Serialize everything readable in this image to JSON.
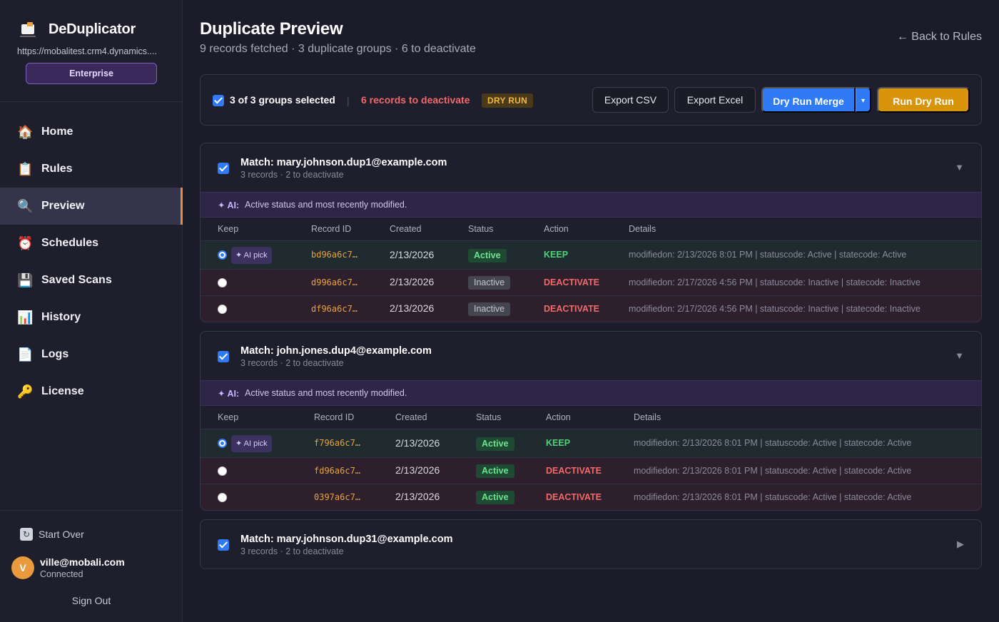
{
  "sidebar": {
    "brand": "DeDuplicator",
    "org_url": "https://mobalitest.crm4.dynamics....",
    "plan": "Enterprise",
    "nav": [
      {
        "label": "Home",
        "icon": "house-icon",
        "glyph": "🏠"
      },
      {
        "label": "Rules",
        "icon": "clipboard-icon",
        "glyph": "📋"
      },
      {
        "label": "Preview",
        "icon": "magnifier-icon",
        "glyph": "🔍"
      },
      {
        "label": "Schedules",
        "icon": "alarm-clock-icon",
        "glyph": "⏰"
      },
      {
        "label": "Saved Scans",
        "icon": "floppy-disk-icon",
        "glyph": "💾"
      },
      {
        "label": "History",
        "icon": "bar-chart-icon",
        "glyph": "📊"
      },
      {
        "label": "Logs",
        "icon": "document-icon",
        "glyph": "📄"
      },
      {
        "label": "License",
        "icon": "key-icon",
        "glyph": "🔑"
      }
    ],
    "active_nav": "Preview",
    "start_over": "Start Over",
    "user": {
      "initial": "V",
      "email": "ville@mobali.com",
      "status": "Connected"
    },
    "sign_out": "Sign Out"
  },
  "header": {
    "title": "Duplicate Preview",
    "subtitle": "9 records fetched · 3 duplicate groups · 6 to deactivate",
    "back_link": "← Back to Rules"
  },
  "toolbar": {
    "selected": "3 of 3 groups selected",
    "separator": "|",
    "deactivate_count": "6 records to deactivate",
    "mode_badge": "DRY RUN",
    "export_csv": "Export CSV",
    "export_excel": "Export Excel",
    "dry_run_merge": "Dry Run Merge",
    "caret": "▾",
    "run": "Run Dry Run"
  },
  "groups": [
    {
      "title": "Match: mary.johnson.dup1@example.com",
      "subtitle": "3 records · 2 to deactivate",
      "toggle": "▼",
      "ai_label": "✦ AI:",
      "ai_text": "Active status and most recently modified.",
      "columns": [
        "Keep",
        "Record ID",
        "Created",
        "Status",
        "Action",
        "Details"
      ],
      "rows": [
        {
          "ai_pick": "✦ AI pick",
          "record_id": "bd96a6c7…",
          "created": "2/13/2026",
          "status": "Active",
          "action": "KEEP",
          "details": "modifiedon: 2/13/2026 8:01 PM | statuscode: Active | statecode: Active"
        },
        {
          "ai_pick": "",
          "record_id": "d996a6c7…",
          "created": "2/13/2026",
          "status": "Inactive",
          "action": "DEACTIVATE",
          "details": "modifiedon: 2/17/2026 4:56 PM | statuscode: Inactive | statecode: Inactive"
        },
        {
          "ai_pick": "",
          "record_id": "df96a6c7…",
          "created": "2/13/2026",
          "status": "Inactive",
          "action": "DEACTIVATE",
          "details": "modifiedon: 2/17/2026 4:56 PM | statuscode: Inactive | statecode: Inactive"
        }
      ]
    },
    {
      "title": "Match: john.jones.dup4@example.com",
      "subtitle": "3 records · 2 to deactivate",
      "toggle": "▼",
      "ai_label": "✦ AI:",
      "ai_text": "Active status and most recently modified.",
      "columns": [
        "Keep",
        "Record ID",
        "Created",
        "Status",
        "Action",
        "Details"
      ],
      "rows": [
        {
          "ai_pick": "✦ AI pick",
          "record_id": "f796a6c7…",
          "created": "2/13/2026",
          "status": "Active",
          "action": "KEEP",
          "details": "modifiedon: 2/13/2026 8:01 PM | statuscode: Active | statecode: Active"
        },
        {
          "ai_pick": "",
          "record_id": "fd96a6c7…",
          "created": "2/13/2026",
          "status": "Active",
          "action": "DEACTIVATE",
          "details": "modifiedon: 2/13/2026 8:01 PM | statuscode: Active | statecode: Active"
        },
        {
          "ai_pick": "",
          "record_id": "0397a6c7…",
          "created": "2/13/2026",
          "status": "Active",
          "action": "DEACTIVATE",
          "details": "modifiedon: 2/13/2026 8:01 PM | statuscode: Active | statecode: Active"
        }
      ]
    },
    {
      "title": "Match: mary.johnson.dup31@example.com",
      "subtitle": "3 records · 2 to deactivate",
      "toggle": "▶"
    }
  ]
}
